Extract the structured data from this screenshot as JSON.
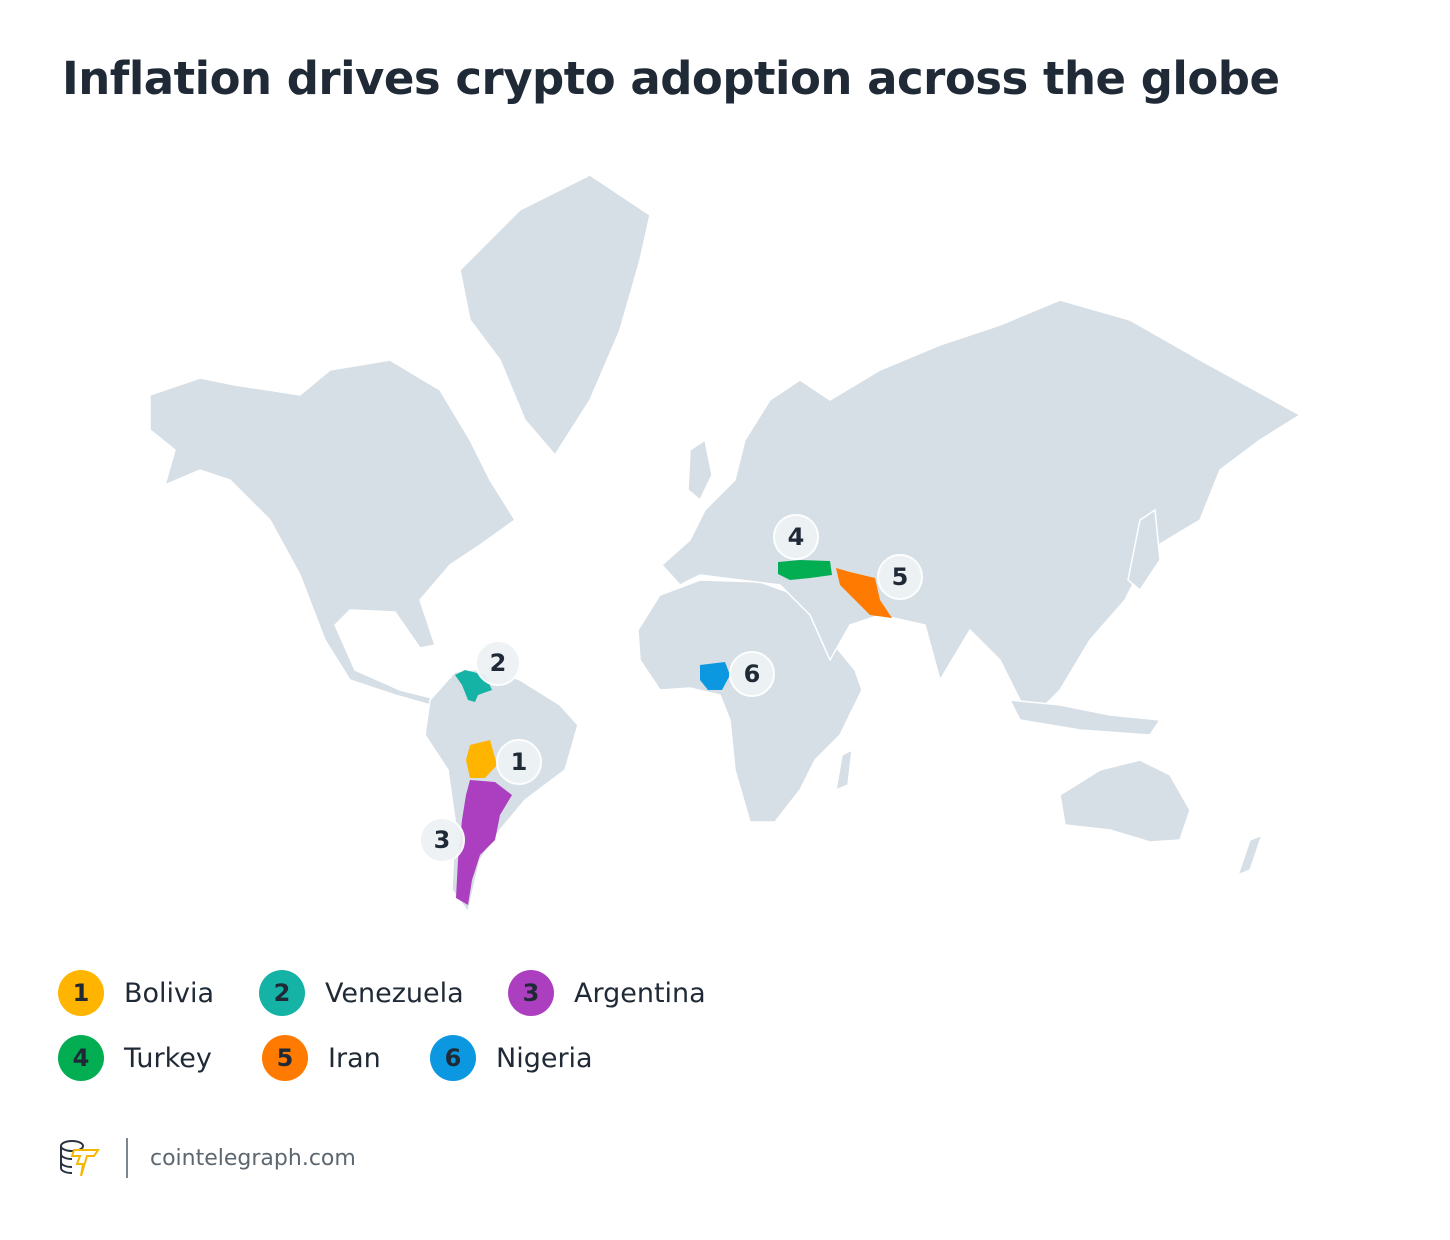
{
  "title": "Inflation drives crypto adoption across the globe",
  "colors": {
    "land": "#d6dfe6",
    "marker_bg": "#eef2f5",
    "text": "#1f2a36"
  },
  "countries": [
    {
      "rank": "1",
      "name": "Bolivia",
      "color": "#ffb400"
    },
    {
      "rank": "2",
      "name": "Venezuela",
      "color": "#14b3a6"
    },
    {
      "rank": "3",
      "name": "Argentina",
      "color": "#ab3fbf"
    },
    {
      "rank": "4",
      "name": "Turkey",
      "color": "#03ad52"
    },
    {
      "rank": "5",
      "name": "Iran",
      "color": "#ff7a00"
    },
    {
      "rank": "6",
      "name": "Nigeria",
      "color": "#0c98e0"
    }
  ],
  "footer": {
    "logo": "cointelegraph-logo",
    "site": "cointelegraph.com"
  }
}
